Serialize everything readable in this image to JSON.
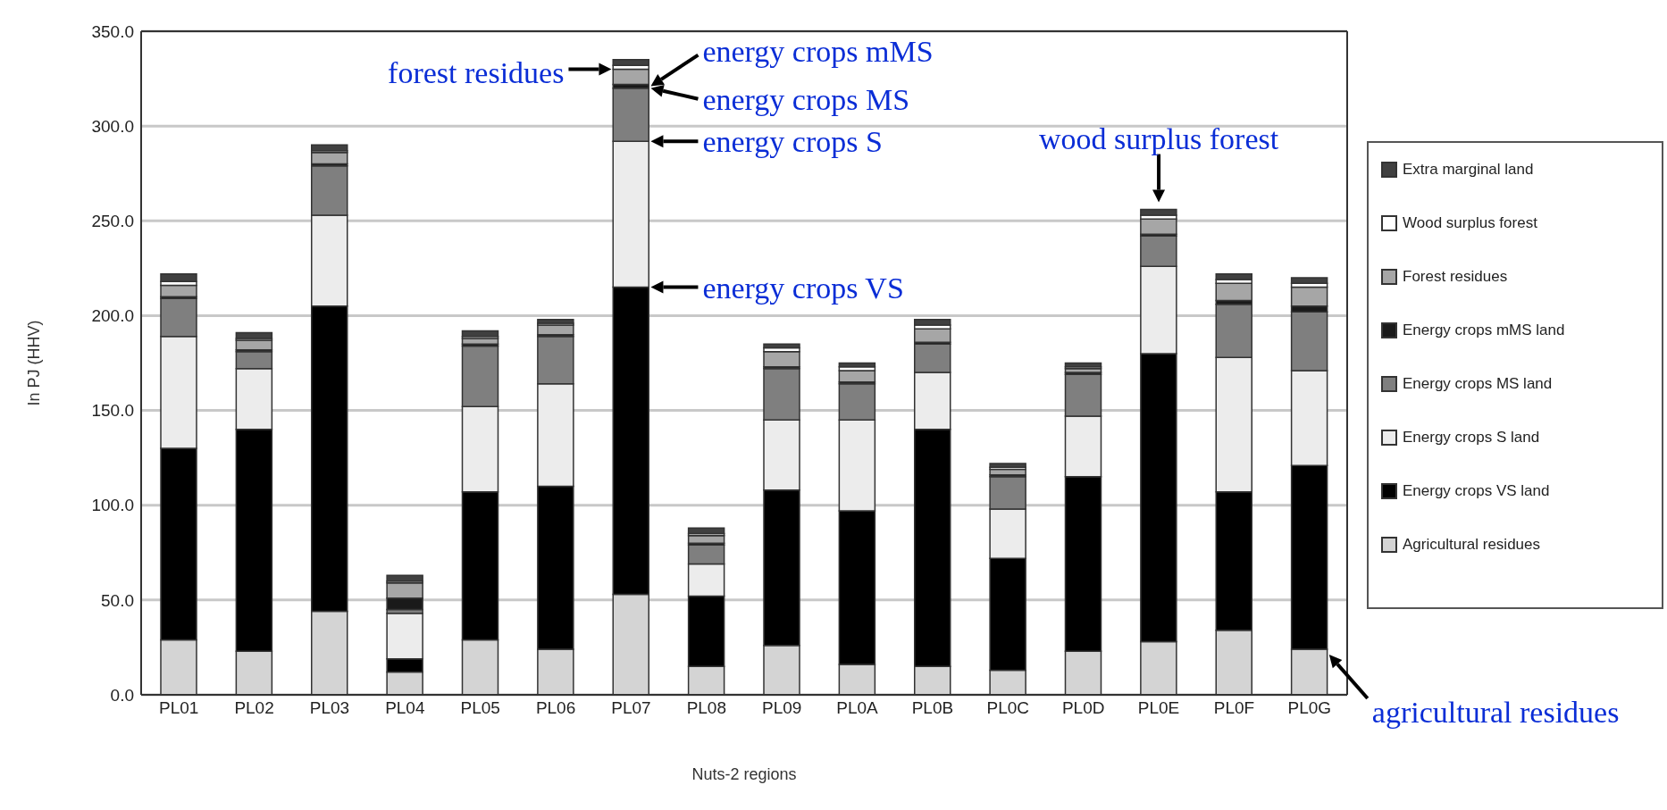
{
  "chart_data": {
    "type": "bar",
    "stacked": true,
    "xlabel": "Nuts-2 regions",
    "ylabel": "In PJ (HHV)",
    "categories": [
      "PL01",
      "PL02",
      "PL03",
      "PL04",
      "PL05",
      "PL06",
      "PL07",
      "PL08",
      "PL09",
      "PL0A",
      "PL0B",
      "PL0C",
      "PL0D",
      "PL0E",
      "PL0F",
      "PL0G"
    ],
    "series": [
      {
        "name": "Agricultural residues",
        "color": "#d4d4d4",
        "values": [
          29,
          23,
          44,
          12,
          29,
          24,
          53,
          15,
          26,
          16,
          15,
          13,
          23,
          28,
          34,
          24
        ]
      },
      {
        "name": "Energy crops VS land",
        "color": "#000000",
        "values": [
          101,
          117,
          161,
          7,
          78,
          86,
          162,
          37,
          82,
          81,
          125,
          59,
          92,
          152,
          73,
          97
        ]
      },
      {
        "name": "Energy crops S land",
        "color": "#ececec",
        "values": [
          59,
          32,
          48,
          24,
          45,
          54,
          77,
          17,
          37,
          48,
          30,
          26,
          32,
          46,
          71,
          50
        ]
      },
      {
        "name": "Energy crops MS land",
        "color": "#7f7f7f",
        "values": [
          20,
          9,
          26,
          2,
          32,
          25,
          28,
          10,
          27,
          19,
          15,
          17,
          22,
          16,
          28,
          31
        ]
      },
      {
        "name": "Energy crops mMS land",
        "color": "#1a1a1a",
        "values": [
          1,
          1,
          1,
          6,
          1,
          1,
          2,
          1,
          1,
          1,
          1,
          1,
          1,
          1,
          2,
          3
        ]
      },
      {
        "name": "Forest residues",
        "color": "#a6a6a6",
        "values": [
          6,
          5,
          6,
          8,
          3,
          5,
          8,
          4,
          8,
          6,
          7,
          3,
          2,
          8,
          9,
          10
        ]
      },
      {
        "name": "Wood surplus forest",
        "color": "#ffffff",
        "values": [
          2,
          1,
          1,
          1,
          1,
          1,
          2,
          1,
          2,
          2,
          2,
          1,
          1,
          2,
          2,
          2
        ]
      },
      {
        "name": "Extra marginal land",
        "color": "#404040",
        "values": [
          4,
          3,
          3,
          3,
          3,
          2,
          3,
          3,
          2,
          2,
          3,
          2,
          2,
          3,
          3,
          3
        ]
      }
    ],
    "ylim": [
      0,
      350
    ],
    "yticks": [
      {
        "value": 0,
        "label": "0.0"
      },
      {
        "value": 50,
        "label": "50.0"
      },
      {
        "value": 100,
        "label": "100.0"
      },
      {
        "value": 150,
        "label": "150.0"
      },
      {
        "value": 200,
        "label": "200.0"
      },
      {
        "value": 250,
        "label": "250.0"
      },
      {
        "value": 300,
        "label": "300.0"
      },
      {
        "value": 350,
        "label": "350.0"
      }
    ],
    "grid": "y",
    "legend": "right",
    "annotations": [
      {
        "text": "forest residues",
        "x": "PL07",
        "y": 330
      },
      {
        "text": "energy crops mMS",
        "x": "PL07",
        "y": 321
      },
      {
        "text": "energy crops MS",
        "x": "PL07",
        "y": 320
      },
      {
        "text": "energy crops S",
        "x": "PL07",
        "y": 292
      },
      {
        "text": "energy crops VS",
        "x": "PL07",
        "y": 215
      },
      {
        "text": "wood surplus forest",
        "x": "PL0E",
        "y": 256
      },
      {
        "text": "agricultural residues",
        "x": "PL0G",
        "y": 24
      }
    ]
  }
}
